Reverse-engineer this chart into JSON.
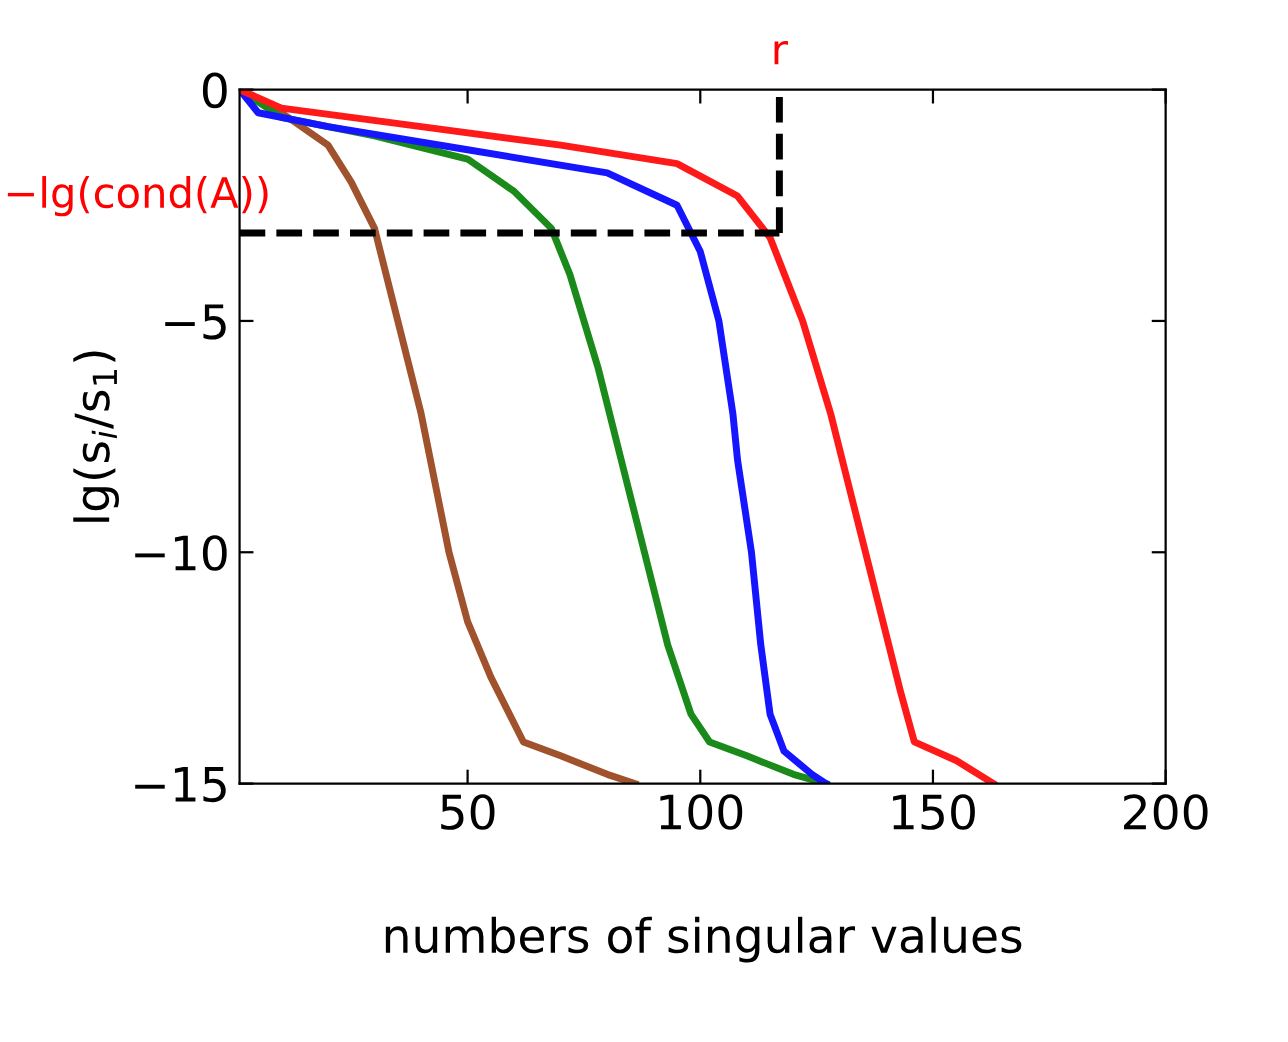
{
  "chart_data": {
    "type": "line",
    "xlabel": "numbers of singular values",
    "ylabel": "lg(s$_{i}$/s$_{1}$)",
    "xlim": [
      1,
      200
    ],
    "ylim": [
      -15,
      0
    ],
    "xticks": [
      50,
      100,
      150,
      200
    ],
    "yticks": [
      {
        "value": -15,
        "label": "−15"
      },
      {
        "value": -10,
        "label": "−10"
      },
      {
        "value": -5,
        "label": "−5"
      },
      0
    ],
    "grid": false,
    "legend": false,
    "line_style": "solid",
    "marker": "none",
    "ref_lines": [
      {
        "axis": "y",
        "value": -3.1,
        "label": "−lg(cond(A))",
        "color": "#000000",
        "line_style": "dashed"
      },
      {
        "axis": "x",
        "value": 117,
        "label": "r",
        "color": "#000000",
        "line_style": "dashed"
      }
    ],
    "series": [
      {
        "color": "#a0522d",
        "x": [
          1,
          10,
          20,
          25,
          30,
          35,
          40,
          46,
          50,
          55,
          62,
          70,
          80,
          86
        ],
        "values": [
          0,
          -0.5,
          -1.2,
          -2,
          -3,
          -5,
          -7,
          -10,
          -11.5,
          -12.7,
          -14.1,
          -14.4,
          -14.8,
          -15
        ]
      },
      {
        "color": "#1a8a1a",
        "x": [
          1,
          10,
          30,
          50,
          60,
          68,
          72,
          78,
          83,
          88,
          93,
          98,
          102,
          110,
          120,
          127
        ],
        "values": [
          0,
          -0.6,
          -1,
          -1.5,
          -2.2,
          -3,
          -4,
          -6,
          -8,
          -10,
          -12,
          -13.5,
          -14.1,
          -14.4,
          -14.8,
          -15
        ]
      },
      {
        "color": "#1515ff",
        "x": [
          1,
          5,
          20,
          50,
          80,
          95,
          100,
          104,
          107,
          108,
          111,
          113,
          115,
          118,
          124,
          127
        ],
        "values": [
          0,
          -0.5,
          -0.8,
          -1.3,
          -1.8,
          -2.5,
          -3.5,
          -5,
          -7,
          -8,
          -10,
          -12,
          -13.5,
          -14.3,
          -14.8,
          -15
        ]
      },
      {
        "color": "#ff1a1a",
        "x": [
          1,
          10,
          40,
          70,
          95,
          108,
          115,
          122,
          128,
          133,
          138,
          143,
          146,
          155,
          163
        ],
        "values": [
          0,
          -0.4,
          -0.8,
          -1.2,
          -1.6,
          -2.3,
          -3.2,
          -5,
          -7,
          -9,
          -11,
          -13,
          -14.1,
          -14.5,
          -15
        ]
      }
    ]
  }
}
